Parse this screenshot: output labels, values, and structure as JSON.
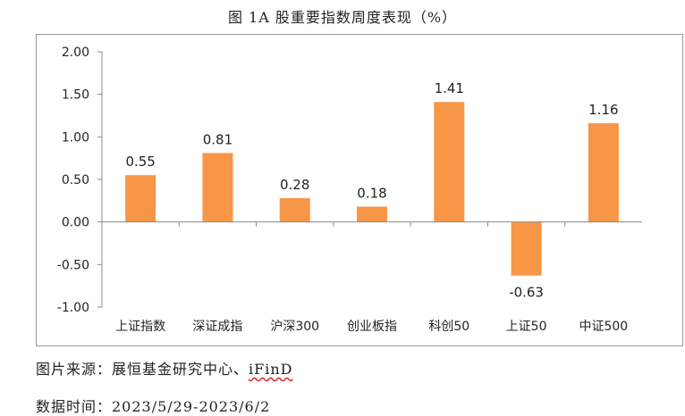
{
  "chart_data": {
    "type": "bar",
    "title": "图 1A 股重要指数周度表现（%）",
    "categories": [
      "上证指数",
      "深证成指",
      "沪深300",
      "创业板指",
      "科创50",
      "上证50",
      "中证500"
    ],
    "values": [
      0.55,
      0.81,
      0.28,
      0.18,
      1.41,
      -0.63,
      1.16
    ],
    "value_labels": [
      "0.55",
      "0.81",
      "0.28",
      "0.18",
      "1.41",
      "-0.63",
      "1.16"
    ],
    "ylim": [
      -1.0,
      2.0
    ],
    "yticks": [
      2.0,
      1.5,
      1.0,
      0.5,
      0.0,
      -0.5,
      -1.0
    ],
    "ytick_labels": [
      "2.00",
      "1.50",
      "1.00",
      "0.50",
      "0.00",
      "-0.50",
      "-1.00"
    ],
    "xlabel": "",
    "ylabel": "",
    "bar_color": "#f79646",
    "grid": false
  },
  "footer": {
    "source_prefix": "图片来源：展恒基金研究中心、",
    "source_ifind": "iFinD",
    "date_label": "数据时间：2023/5/29-2023/6/2"
  }
}
